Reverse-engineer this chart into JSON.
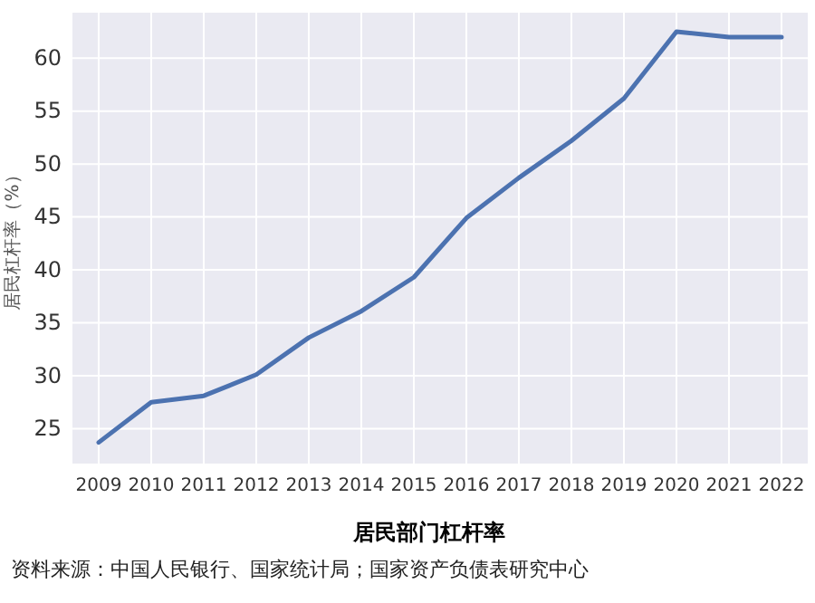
{
  "chart_data": {
    "type": "line",
    "title": "居民部门杠杆率",
    "ylabel": "居民杠杆率（%）",
    "categories": [
      "2009",
      "2010",
      "2011",
      "2012",
      "2013",
      "2014",
      "2015",
      "2016",
      "2017",
      "2018",
      "2019",
      "2020",
      "2021",
      "2022"
    ],
    "series": [
      {
        "color": "#4c72b0",
        "values": [
          23.7,
          27.5,
          28.1,
          30.1,
          33.6,
          36.1,
          39.3,
          44.9,
          48.7,
          52.2,
          56.2,
          62.5,
          62.0,
          62.0
        ]
      }
    ],
    "ylim": [
      21.7,
      64.3
    ],
    "yticks": [
      25,
      30,
      35,
      40,
      45,
      50,
      55,
      60
    ],
    "grid": true,
    "annotations": [
      "资料来源：中国人民银行、国家统计局；国家资产负债表研究中心"
    ]
  }
}
